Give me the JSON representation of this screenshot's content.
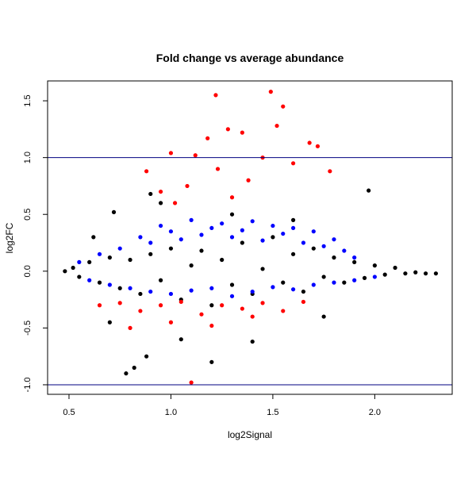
{
  "chart_data": {
    "type": "scatter",
    "title": "Fold change vs average abundance",
    "x_label": "log2Signal",
    "y_label": "log2FC",
    "xlim": [
      0.395,
      2.38
    ],
    "ylim": [
      -1.084,
      1.675
    ],
    "xticks": [
      0.5,
      {
        "value": 1,
        "label": "1.0"
      },
      1.5,
      {
        "value": 2,
        "label": "2.0"
      }
    ],
    "yticks": [
      {
        "value": -1,
        "label": "-1.0"
      },
      -0.5,
      {
        "value": 0,
        "label": "0.0"
      },
      0.5,
      {
        "value": 1,
        "label": "1.0"
      },
      1.5
    ],
    "hlines": [
      1,
      -1
    ],
    "hline_color": "#000080",
    "series": [
      {
        "color": "#000000",
        "x": [
          0.48,
          0.52,
          0.55,
          0.6,
          0.65,
          0.7,
          0.75,
          0.8,
          0.85,
          0.9,
          0.95,
          1.0,
          1.05,
          1.1,
          1.15,
          1.2,
          1.25,
          1.3,
          1.35,
          1.4,
          1.45,
          1.5,
          1.55,
          1.6,
          1.65,
          1.7,
          1.75,
          1.8,
          1.85,
          1.9,
          1.95,
          2.0,
          2.05,
          2.1,
          2.15,
          2.2,
          2.25,
          2.3,
          0.78,
          0.82,
          0.9,
          1.2,
          1.97,
          0.72,
          0.88,
          1.05,
          1.4,
          1.6,
          0.62,
          0.7,
          0.95,
          1.3,
          1.75
        ],
        "values": [
          0.0,
          0.03,
          -0.05,
          0.08,
          -0.1,
          0.12,
          -0.15,
          0.1,
          -0.2,
          0.15,
          -0.08,
          0.2,
          -0.25,
          0.05,
          0.18,
          -0.3,
          0.1,
          -0.12,
          0.25,
          -0.2,
          0.02,
          0.3,
          -0.1,
          0.15,
          -0.18,
          0.2,
          -0.05,
          0.12,
          -0.1,
          0.08,
          -0.06,
          0.05,
          -0.03,
          0.03,
          -0.02,
          -0.01,
          -0.02,
          -0.02,
          -0.9,
          -0.85,
          0.68,
          -0.8,
          0.71,
          0.52,
          -0.75,
          -0.6,
          -0.62,
          0.45,
          0.3,
          -0.45,
          0.6,
          0.5,
          -0.4
        ]
      },
      {
        "color": "#0000ff",
        "x": [
          0.55,
          0.65,
          0.75,
          0.85,
          0.9,
          0.95,
          1.0,
          1.05,
          1.1,
          1.15,
          1.2,
          1.25,
          1.3,
          1.35,
          1.4,
          1.45,
          1.5,
          1.55,
          1.6,
          1.65,
          1.7,
          1.75,
          1.8,
          1.85,
          1.9,
          0.6,
          0.7,
          0.8,
          0.9,
          1.0,
          1.1,
          1.2,
          1.3,
          1.4,
          1.5,
          1.6,
          1.7,
          1.8,
          1.9,
          2.0
        ],
        "values": [
          0.08,
          0.15,
          0.2,
          0.3,
          0.25,
          0.4,
          0.35,
          0.28,
          0.45,
          0.32,
          0.38,
          0.42,
          0.3,
          0.36,
          0.44,
          0.27,
          0.4,
          0.33,
          0.38,
          0.25,
          0.35,
          0.22,
          0.28,
          0.18,
          0.12,
          -0.08,
          -0.12,
          -0.15,
          -0.18,
          -0.2,
          -0.17,
          -0.15,
          -0.22,
          -0.18,
          -0.14,
          -0.16,
          -0.12,
          -0.1,
          -0.08,
          -0.05
        ]
      },
      {
        "color": "#ff0000",
        "x": [
          0.88,
          0.95,
          1.0,
          1.02,
          1.08,
          1.12,
          1.18,
          1.22,
          1.23,
          1.28,
          1.3,
          1.35,
          1.38,
          1.45,
          1.49,
          1.52,
          1.55,
          1.6,
          1.68,
          1.72,
          1.78,
          0.65,
          0.75,
          0.85,
          0.95,
          1.05,
          1.15,
          1.25,
          1.35,
          1.45,
          1.55,
          1.65,
          0.8,
          1.0,
          1.2,
          1.1,
          1.4
        ],
        "values": [
          0.88,
          0.7,
          1.04,
          0.6,
          0.75,
          1.02,
          1.17,
          1.55,
          0.9,
          1.25,
          0.65,
          1.22,
          0.8,
          1.0,
          1.58,
          1.28,
          1.45,
          0.95,
          1.13,
          1.1,
          0.88,
          -0.3,
          -0.28,
          -0.35,
          -0.3,
          -0.27,
          -0.38,
          -0.3,
          -0.33,
          -0.28,
          -0.35,
          -0.27,
          -0.5,
          -0.45,
          -0.48,
          -0.98,
          -0.4
        ]
      }
    ]
  }
}
